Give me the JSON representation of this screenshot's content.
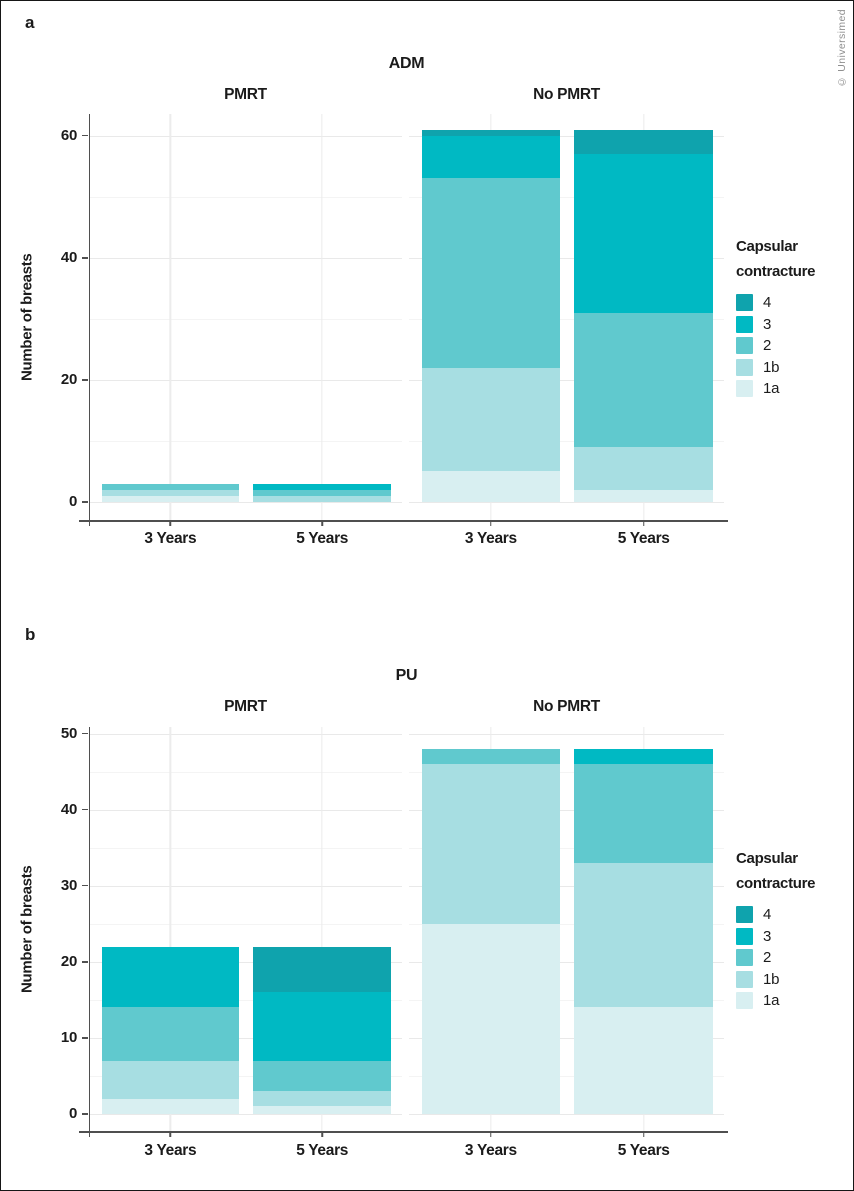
{
  "figure": {
    "watermark": "© Universimed",
    "background": "#ffffff"
  },
  "colors": {
    "grades": {
      "g4": "#0fa3ad",
      "g3": "#00b9c3",
      "g2": "#60c9ce",
      "g1b": "#a7dee2",
      "g1a": "#d8eff1"
    },
    "axis_line": "#4f4f4f",
    "grid_major": "#e9e9e9",
    "grid_minor": "#f4f4f4",
    "text": "#1b1b1b",
    "watermark_text": "#8f8f8f",
    "frame": "#161616"
  },
  "chart_data": [
    {
      "type": "bar",
      "stacked": true,
      "panel_letter": "a",
      "title": "ADM",
      "ylabel": "Number of breasts",
      "yticks": [
        0,
        20,
        40,
        60
      ],
      "ylim": [
        0,
        63
      ],
      "grid": true,
      "legend_title": "Capsular contracture",
      "legend_position": "right",
      "legend_items": [
        {
          "key": "g4",
          "label": "4"
        },
        {
          "key": "g3",
          "label": "3"
        },
        {
          "key": "g2",
          "label": "2"
        },
        {
          "key": "g1b",
          "label": "1b"
        },
        {
          "key": "g1a",
          "label": "1a"
        }
      ],
      "stack_order_bottom_to_top": [
        "g1a",
        "g1b",
        "g2",
        "g3",
        "g4"
      ],
      "x_tick_labels": [
        "3 Years",
        "5 Years"
      ],
      "facets": [
        {
          "label": "PMRT",
          "bars": [
            {
              "x": "3 Years",
              "total": 3,
              "segments": {
                "g1a": 1,
                "g1b": 1,
                "g2": 1,
                "g3": 0,
                "g4": 0
              }
            },
            {
              "x": "5 Years",
              "total": 3,
              "segments": {
                "g1a": 0,
                "g1b": 1,
                "g2": 1,
                "g3": 1,
                "g4": 0
              }
            }
          ]
        },
        {
          "label": "No PMRT",
          "bars": [
            {
              "x": "3 Years",
              "total": 61,
              "segments": {
                "g1a": 5,
                "g1b": 17,
                "g2": 31,
                "g3": 7,
                "g4": 1
              }
            },
            {
              "x": "5 Years",
              "total": 61,
              "segments": {
                "g1a": 2,
                "g1b": 7,
                "g2": 22,
                "g3": 26,
                "g4": 4
              }
            }
          ]
        }
      ]
    },
    {
      "type": "bar",
      "stacked": true,
      "panel_letter": "b",
      "title": "PU",
      "ylabel": "Number of breasts",
      "yticks": [
        0,
        10,
        20,
        30,
        40,
        50
      ],
      "ylim": [
        0,
        51
      ],
      "grid": true,
      "legend_title": "Capsular contracture",
      "legend_position": "right",
      "legend_items": [
        {
          "key": "g4",
          "label": "4"
        },
        {
          "key": "g3",
          "label": "3"
        },
        {
          "key": "g2",
          "label": "2"
        },
        {
          "key": "g1b",
          "label": "1b"
        },
        {
          "key": "g1a",
          "label": "1a"
        }
      ],
      "stack_order_bottom_to_top": [
        "g1a",
        "g1b",
        "g2",
        "g3",
        "g4"
      ],
      "x_tick_labels": [
        "3 Years",
        "5 Years"
      ],
      "facets": [
        {
          "label": "PMRT",
          "bars": [
            {
              "x": "3 Years",
              "total": 22,
              "segments": {
                "g1a": 2,
                "g1b": 5,
                "g2": 7,
                "g3": 8,
                "g4": 0
              }
            },
            {
              "x": "5 Years",
              "total": 22,
              "segments": {
                "g1a": 1,
                "g1b": 2,
                "g2": 4,
                "g3": 9,
                "g4": 6
              }
            }
          ]
        },
        {
          "label": "No PMRT",
          "bars": [
            {
              "x": "3 Years",
              "total": 48,
              "segments": {
                "g1a": 25,
                "g1b": 21,
                "g2": 2,
                "g3": 0,
                "g4": 0
              }
            },
            {
              "x": "5 Years",
              "total": 48,
              "segments": {
                "g1a": 14,
                "g1b": 19,
                "g2": 13,
                "g3": 2,
                "g4": 0
              }
            }
          ]
        }
      ]
    }
  ]
}
